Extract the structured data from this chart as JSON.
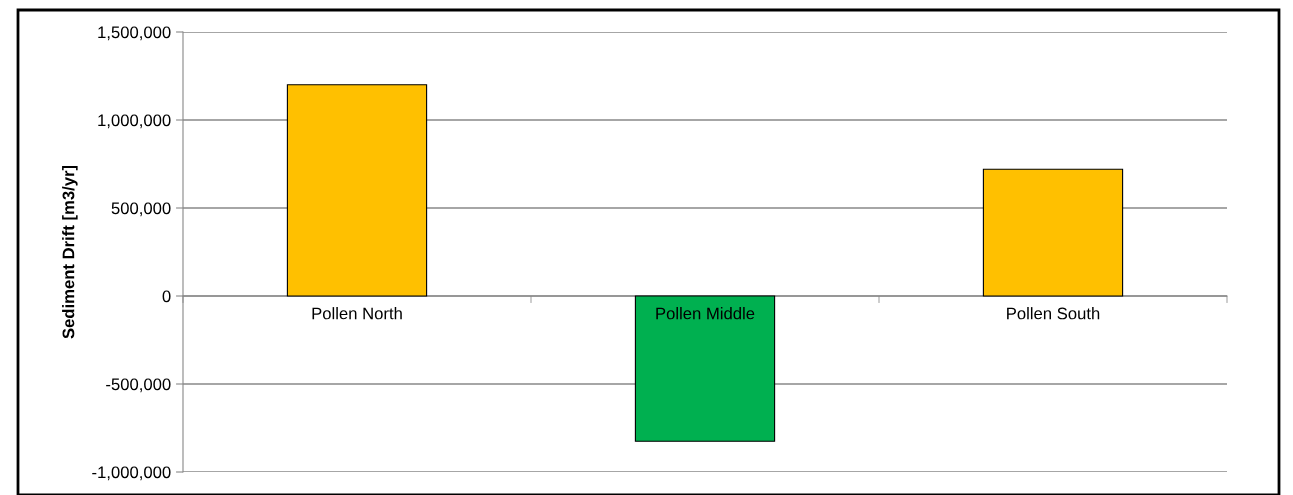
{
  "chart_data": {
    "type": "bar",
    "ylabel": "Sediment Drift [m3/yr]",
    "categories": [
      "Pollen North",
      "Pollen Middle",
      "Pollen South"
    ],
    "values": [
      1200000,
      -825000,
      720000
    ],
    "colors": [
      "#ffc000",
      "#00b050",
      "#ffc000"
    ],
    "ylim": [
      -1000000,
      1500000
    ],
    "yticks": [
      {
        "value": -1000000,
        "label": "-1,000,000"
      },
      {
        "value": -500000,
        "label": "-500,000"
      },
      0,
      {
        "value": 500000,
        "label": "500,000"
      },
      {
        "value": 1000000,
        "label": "1,000,000"
      },
      {
        "value": 1500000,
        "label": "1,500,000"
      }
    ],
    "grid": "y",
    "legend": false
  }
}
